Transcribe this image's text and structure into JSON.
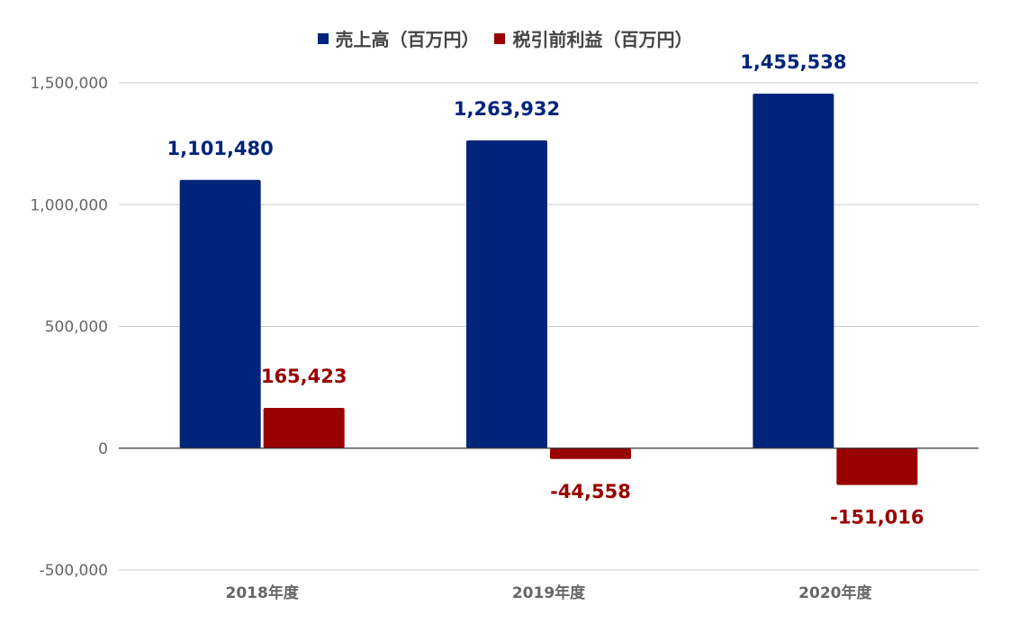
{
  "chart_data": {
    "type": "bar",
    "categories": [
      "2018年度",
      "2019年度",
      "2020年度"
    ],
    "series": [
      {
        "name": "売上高（百万円）",
        "color": "#002479",
        "values": [
          1101480,
          1263932,
          1455538
        ],
        "labels": [
          "1,101,480",
          "1,263,932",
          "1,455,538"
        ]
      },
      {
        "name": "税引前利益（百万円）",
        "color": "#990000",
        "values": [
          165423,
          -44558,
          -151016
        ],
        "labels": [
          "165,423",
          "-44,558",
          "-151,016"
        ]
      }
    ],
    "yticks": [
      -500000,
      0,
      500000,
      1000000,
      1500000
    ],
    "ytick_labels": [
      "-500,000",
      "0",
      "500,000",
      "1,000,000",
      "1,500,000"
    ],
    "ylim": [
      -500000,
      1500000
    ],
    "grid": true,
    "legend_position": "top-center",
    "colors": {
      "grid": "#cccccc",
      "zero_line": "#333333",
      "tick_text": "#666666",
      "category_text": "#666666"
    }
  }
}
